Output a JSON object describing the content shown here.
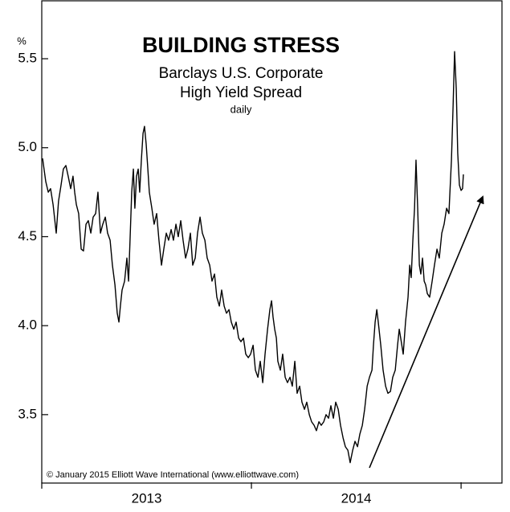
{
  "chart_data": {
    "type": "line",
    "title": "BUILDING STRESS",
    "subtitle": [
      "Barclays U.S. Corporate",
      "High Yield Spread"
    ],
    "frequency_note": "daily",
    "y_unit": "%",
    "copyright": "© January 2015 Elliott Wave International (www.elliottwave.com)",
    "color": "#000000",
    "ylim": [
      3.12,
      5.83
    ],
    "yticks": [
      3.5,
      {
        "value": 4,
        "label": "4.0"
      },
      4.5,
      {
        "value": 5,
        "label": "5.0"
      },
      5.5
    ],
    "xlim": [
      2013,
      2015.195
    ],
    "xticks": [
      2013,
      2014,
      2015
    ],
    "x_labels": [
      "2013",
      "2014"
    ],
    "x": [
      2013.004,
      2013.019,
      2013.031,
      2013.042,
      2013.054,
      2013.069,
      2013.08,
      2013.092,
      2013.103,
      2013.115,
      2013.126,
      2013.138,
      2013.149,
      2013.157,
      2013.165,
      2013.176,
      2013.188,
      2013.199,
      2013.211,
      2013.222,
      2013.234,
      2013.245,
      2013.257,
      2013.268,
      2013.28,
      2013.291,
      2013.303,
      2013.314,
      2013.326,
      2013.337,
      2013.349,
      2013.36,
      2013.368,
      2013.375,
      2013.383,
      2013.395,
      2013.406,
      2013.414,
      2013.421,
      2013.429,
      2013.437,
      2013.444,
      2013.452,
      2013.46,
      2013.467,
      2013.475,
      2013.483,
      2013.49,
      2013.498,
      2013.506,
      2013.513,
      2013.525,
      2013.536,
      2013.548,
      2013.559,
      2013.571,
      2013.582,
      2013.594,
      2013.605,
      2013.617,
      2013.628,
      2013.64,
      2013.651,
      2013.663,
      2013.674,
      2013.686,
      2013.697,
      2013.709,
      2013.72,
      2013.732,
      2013.743,
      2013.755,
      2013.766,
      2013.778,
      2013.789,
      2013.801,
      2013.812,
      2013.824,
      2013.835,
      2013.847,
      2013.858,
      2013.87,
      2013.881,
      2013.893,
      2013.904,
      2013.916,
      2013.927,
      2013.939,
      2013.95,
      2013.962,
      2013.973,
      2013.985,
      2013.996,
      2014.008,
      2014.019,
      2014.031,
      2014.042,
      2014.054,
      2014.065,
      2014.077,
      2014.088,
      2014.096,
      2014.103,
      2014.111,
      2014.119,
      2014.126,
      2014.138,
      2014.149,
      2014.161,
      2014.172,
      2014.184,
      2014.195,
      2014.207,
      2014.218,
      2014.23,
      2014.241,
      2014.253,
      2014.264,
      2014.276,
      2014.287,
      2014.299,
      2014.31,
      2014.322,
      2014.333,
      2014.345,
      2014.356,
      2014.368,
      2014.379,
      2014.391,
      2014.402,
      2014.414,
      2014.425,
      2014.437,
      2014.448,
      2014.46,
      2014.471,
      2014.483,
      2014.494,
      2014.506,
      2014.517,
      2014.529,
      2014.54,
      2014.552,
      2014.563,
      2014.575,
      2014.582,
      2014.59,
      2014.598,
      2014.605,
      2014.617,
      2014.628,
      2014.64,
      2014.651,
      2014.663,
      2014.674,
      2014.686,
      2014.697,
      2014.705,
      2014.712,
      2014.724,
      2014.735,
      2014.747,
      2014.755,
      2014.762,
      2014.77,
      2014.778,
      2014.785,
      2014.793,
      2014.801,
      2014.808,
      2014.816,
      2014.824,
      2014.831,
      2014.839,
      2014.85,
      2014.862,
      2014.873,
      2014.885,
      2014.896,
      2014.908,
      2014.919,
      2014.931,
      2014.942,
      2014.954,
      2014.962,
      2014.969,
      2014.977,
      2014.984,
      2014.992,
      2015.0,
      2015.007,
      2015.011
    ],
    "values": [
      4.94,
      4.81,
      4.75,
      4.77,
      4.68,
      4.52,
      4.7,
      4.79,
      4.88,
      4.9,
      4.84,
      4.77,
      4.84,
      4.75,
      4.68,
      4.63,
      4.43,
      4.42,
      4.57,
      4.59,
      4.52,
      4.61,
      4.63,
      4.75,
      4.52,
      4.57,
      4.61,
      4.52,
      4.48,
      4.34,
      4.23,
      4.07,
      4.02,
      4.11,
      4.2,
      4.25,
      4.38,
      4.25,
      4.48,
      4.75,
      4.88,
      4.66,
      4.84,
      4.88,
      4.75,
      4.93,
      5.08,
      5.12,
      5.02,
      4.88,
      4.75,
      4.66,
      4.57,
      4.63,
      4.48,
      4.34,
      4.43,
      4.52,
      4.48,
      4.54,
      4.48,
      4.57,
      4.5,
      4.59,
      4.48,
      4.38,
      4.43,
      4.52,
      4.34,
      4.38,
      4.52,
      4.61,
      4.52,
      4.48,
      4.38,
      4.34,
      4.25,
      4.29,
      4.16,
      4.11,
      4.2,
      4.11,
      4.07,
      4.09,
      4.02,
      3.98,
      4.02,
      3.93,
      3.91,
      3.93,
      3.84,
      3.82,
      3.84,
      3.89,
      3.75,
      3.71,
      3.8,
      3.68,
      3.84,
      3.98,
      4.09,
      4.14,
      4.05,
      3.98,
      3.93,
      3.8,
      3.75,
      3.84,
      3.71,
      3.68,
      3.71,
      3.66,
      3.8,
      3.62,
      3.66,
      3.57,
      3.53,
      3.57,
      3.5,
      3.46,
      3.44,
      3.41,
      3.46,
      3.44,
      3.46,
      3.5,
      3.48,
      3.55,
      3.48,
      3.57,
      3.53,
      3.44,
      3.37,
      3.32,
      3.3,
      3.23,
      3.3,
      3.35,
      3.32,
      3.39,
      3.44,
      3.53,
      3.66,
      3.71,
      3.75,
      3.89,
      4.02,
      4.09,
      4.02,
      3.89,
      3.75,
      3.66,
      3.62,
      3.63,
      3.71,
      3.75,
      3.89,
      3.98,
      3.93,
      3.84,
      4.02,
      4.16,
      4.34,
      4.27,
      4.48,
      4.66,
      4.93,
      4.66,
      4.34,
      4.29,
      4.38,
      4.25,
      4.23,
      4.18,
      4.16,
      4.25,
      4.34,
      4.43,
      4.38,
      4.52,
      4.57,
      4.66,
      4.63,
      4.93,
      5.24,
      5.54,
      5.33,
      4.97,
      4.79,
      4.76,
      4.77,
      4.85
    ]
  }
}
